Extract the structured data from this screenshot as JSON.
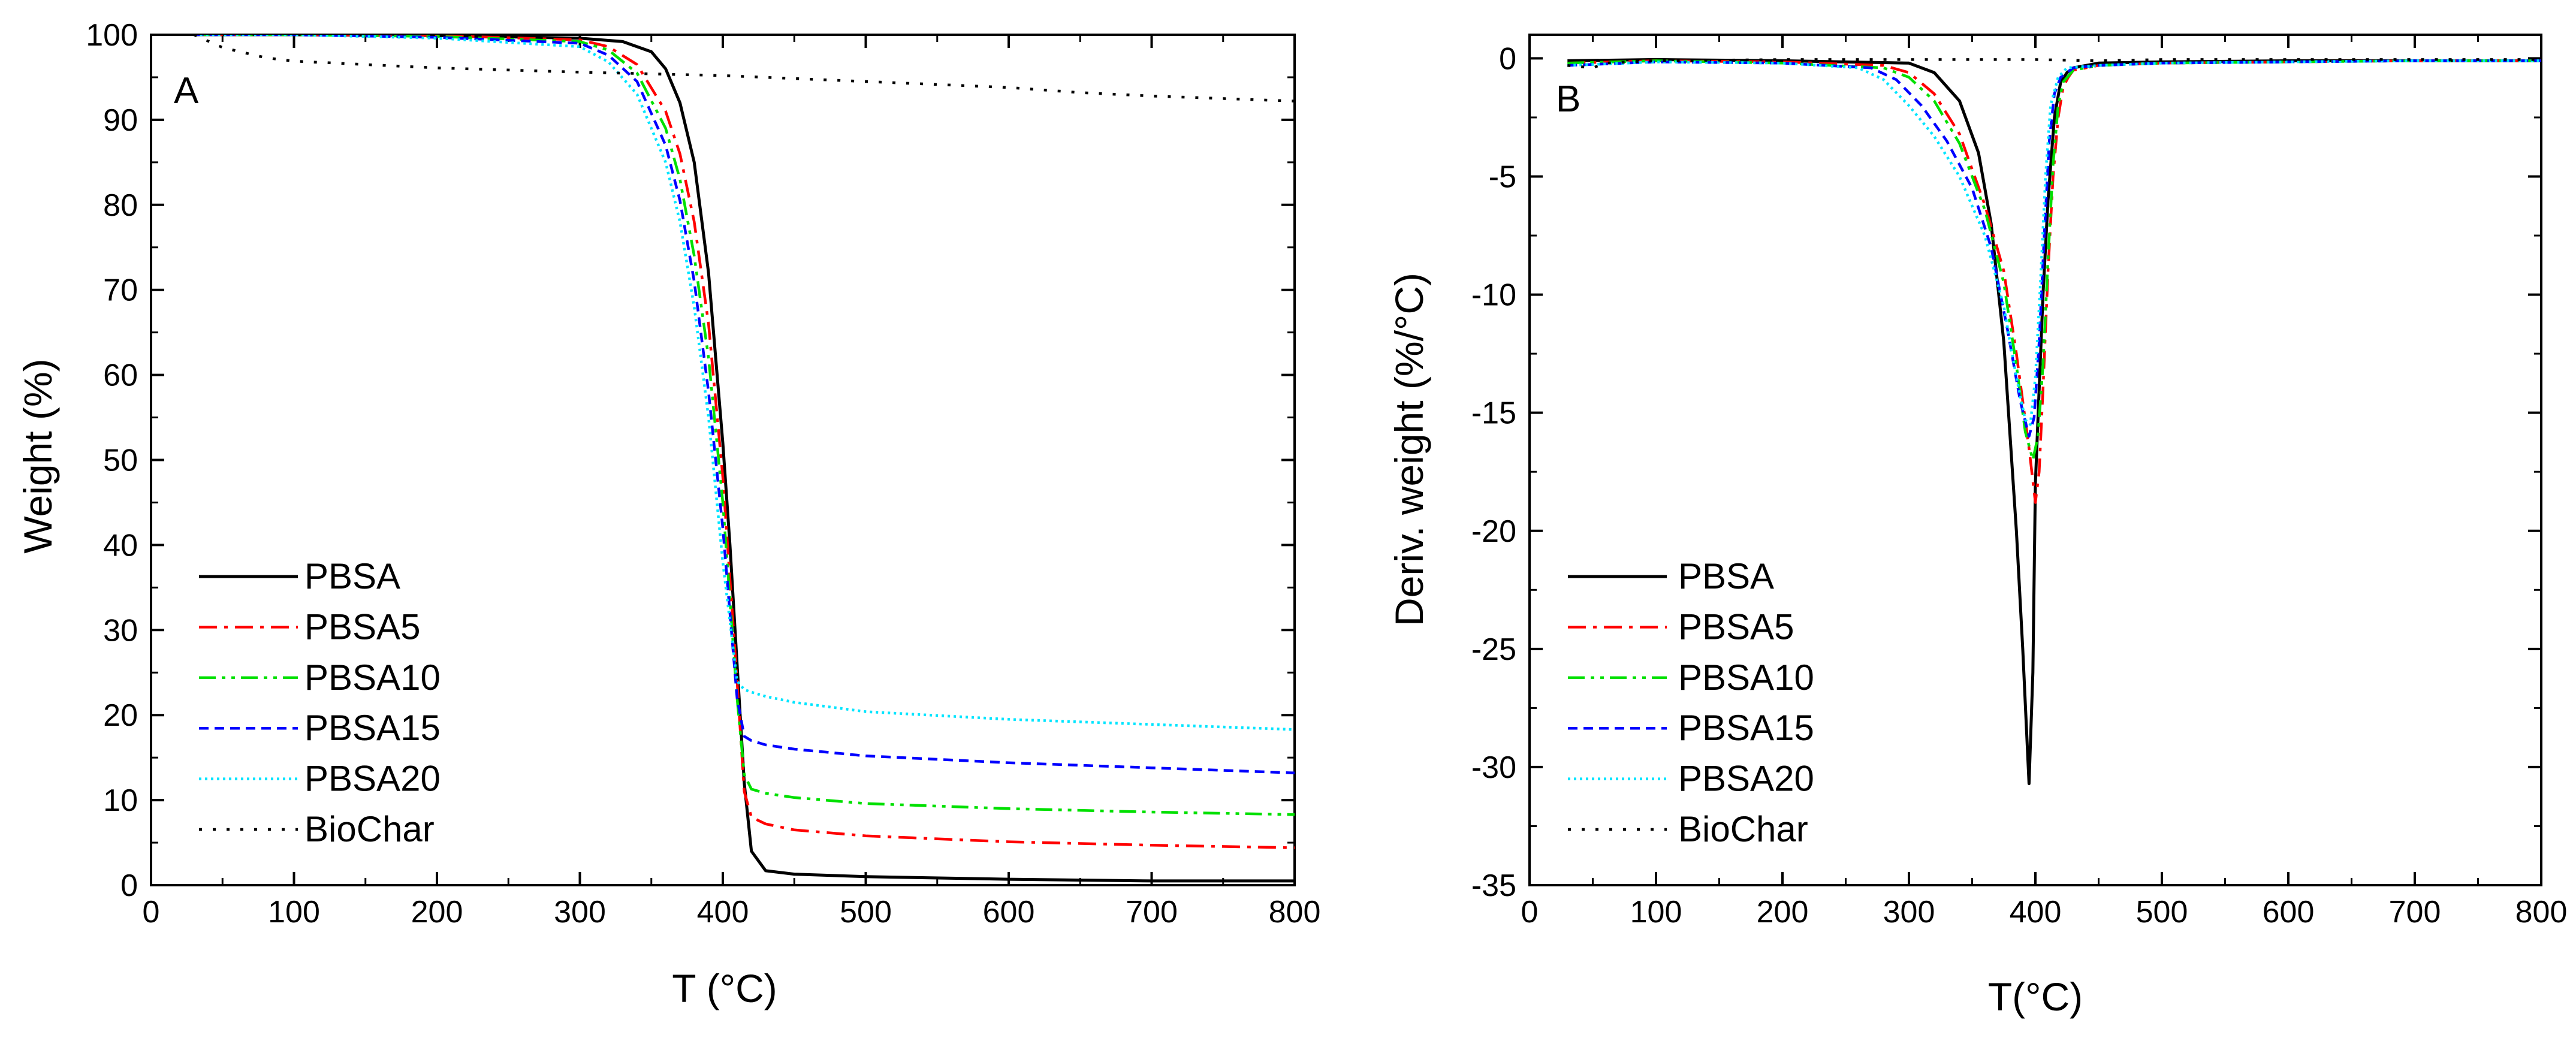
{
  "colors": {
    "PBSA": "#000000",
    "PBSA5": "#ff0000",
    "PBSA10": "#00e000",
    "PBSA15": "#0000ff",
    "PBSA20": "#00e5ff",
    "BioChar": "#000000"
  },
  "chart_data": [
    {
      "type": "line",
      "panel_label": "A",
      "xlabel": "T (°C)",
      "ylabel": "Weight (%)",
      "xlim": [
        0,
        800
      ],
      "ylim": [
        0,
        100
      ],
      "x_ticks": [
        0,
        100,
        200,
        300,
        400,
        500,
        600,
        700,
        800
      ],
      "x_tick_labels": [
        "0",
        "100",
        "200",
        "300",
        "400",
        "500",
        "600",
        "700",
        "800"
      ],
      "y_ticks": [
        0,
        10,
        20,
        30,
        40,
        50,
        60,
        70,
        80,
        90,
        100
      ],
      "y_tick_labels": [
        "0",
        "10",
        "20",
        "30",
        "40",
        "50",
        "60",
        "70",
        "80",
        "90",
        "100"
      ],
      "legend_position": "bottom-left",
      "series": [
        {
          "name": "PBSA",
          "style": "solid",
          "color": "#000000",
          "x": [
            30,
            100,
            200,
            300,
            330,
            350,
            360,
            370,
            380,
            390,
            400,
            405,
            410,
            415,
            420,
            430,
            450,
            500,
            600,
            700,
            800
          ],
          "y": [
            100,
            100,
            99.9,
            99.6,
            99.2,
            98,
            96,
            92,
            85,
            72,
            52,
            40,
            26,
            12,
            4,
            1.7,
            1.3,
            1.0,
            0.7,
            0.5,
            0.5
          ]
        },
        {
          "name": "PBSA5",
          "style": "dashdot",
          "color": "#ff0000",
          "x": [
            30,
            100,
            200,
            300,
            320,
            340,
            360,
            370,
            380,
            390,
            400,
            410,
            415,
            420,
            430,
            450,
            500,
            600,
            700,
            800
          ],
          "y": [
            100,
            100,
            99.9,
            99.4,
            98.6,
            96.5,
            91,
            86,
            78,
            66,
            48,
            24,
            11,
            8,
            7.2,
            6.5,
            5.8,
            5.1,
            4.7,
            4.4
          ]
        },
        {
          "name": "PBSA10",
          "style": "dashdotdot",
          "color": "#00e000",
          "x": [
            30,
            100,
            200,
            300,
            320,
            340,
            360,
            370,
            380,
            390,
            400,
            410,
            415,
            420,
            430,
            450,
            500,
            600,
            700,
            800
          ],
          "y": [
            100,
            100,
            99.8,
            99.2,
            98.2,
            95.5,
            89,
            83,
            74,
            62,
            45,
            22,
            13,
            11.3,
            10.8,
            10.3,
            9.6,
            9.0,
            8.6,
            8.3
          ]
        },
        {
          "name": "PBSA15",
          "style": "dash",
          "color": "#0000ff",
          "x": [
            30,
            100,
            200,
            300,
            320,
            340,
            360,
            370,
            380,
            390,
            400,
            410,
            415,
            420,
            430,
            450,
            500,
            600,
            700,
            800
          ],
          "y": [
            100,
            100,
            99.7,
            99.0,
            97.6,
            94.5,
            87,
            80.5,
            71,
            58,
            42,
            22,
            17.5,
            17,
            16.5,
            16,
            15.2,
            14.4,
            13.8,
            13.2
          ]
        },
        {
          "name": "PBSA20",
          "style": "dot",
          "color": "#00e5ff",
          "x": [
            30,
            100,
            200,
            300,
            320,
            340,
            360,
            370,
            380,
            390,
            400,
            410,
            415,
            420,
            430,
            450,
            500,
            600,
            700,
            800
          ],
          "y": [
            100,
            100,
            99.6,
            98.6,
            96.8,
            93,
            85,
            78,
            68,
            55,
            38,
            24,
            23,
            22.7,
            22.2,
            21.5,
            20.4,
            19.5,
            18.9,
            18.3
          ]
        },
        {
          "name": "BioChar",
          "style": "sparse-dot",
          "color": "#000000",
          "x": [
            30,
            50,
            80,
            100,
            150,
            200,
            300,
            400,
            500,
            600,
            650,
            700,
            800
          ],
          "y": [
            100,
            98.5,
            97.3,
            96.9,
            96.5,
            96.1,
            95.6,
            95.2,
            94.5,
            93.8,
            93.2,
            92.8,
            92.2
          ]
        }
      ]
    },
    {
      "type": "line",
      "panel_label": "B",
      "xlabel": "T(°C)",
      "ylabel": "Deriv. weight (%/°C)",
      "xlim": [
        0,
        800
      ],
      "ylim": [
        -35,
        1
      ],
      "x_ticks": [
        0,
        100,
        200,
        300,
        400,
        500,
        600,
        700,
        800
      ],
      "x_tick_labels": [
        "0",
        "100",
        "200",
        "300",
        "400",
        "500",
        "600",
        "700",
        "800"
      ],
      "y_ticks": [
        0,
        -5,
        -10,
        -15,
        -20,
        -25,
        -30,
        -35
      ],
      "y_tick_labels": [
        "0",
        "-5",
        "-10",
        "-15",
        "-20",
        "-25",
        "-30",
        "-35"
      ],
      "legend_position": "bottom-left",
      "series": [
        {
          "name": "PBSA",
          "style": "solid",
          "color": "#000000",
          "x": [
            30,
            100,
            200,
            300,
            320,
            340,
            355,
            365,
            375,
            385,
            390,
            395,
            398,
            400,
            403,
            406,
            410,
            415,
            420,
            425,
            430,
            450,
            500,
            600,
            700,
            800
          ],
          "y": [
            -0.1,
            -0.05,
            -0.1,
            -0.2,
            -0.6,
            -1.8,
            -4,
            -7,
            -12,
            -20,
            -25,
            -30.7,
            -26,
            -18,
            -14,
            -10,
            -6,
            -2.5,
            -1,
            -0.6,
            -0.4,
            -0.2,
            -0.15,
            -0.1,
            -0.1,
            -0.1
          ]
        },
        {
          "name": "PBSA5",
          "style": "dashdot",
          "color": "#ff0000",
          "x": [
            30,
            100,
            200,
            280,
            300,
            320,
            340,
            360,
            375,
            385,
            395,
            400,
            403,
            406,
            410,
            414,
            418,
            422,
            426,
            430,
            450,
            500,
            600,
            700,
            800
          ],
          "y": [
            -0.2,
            -0.1,
            -0.15,
            -0.3,
            -0.6,
            -1.5,
            -3.2,
            -6.2,
            -9,
            -12.5,
            -16.5,
            -18.8,
            -17.5,
            -14,
            -9,
            -5,
            -2.5,
            -1.2,
            -0.8,
            -0.5,
            -0.3,
            -0.2,
            -0.15,
            -0.1,
            -0.1
          ]
        },
        {
          "name": "PBSA10",
          "style": "dashdotdot",
          "color": "#00e000",
          "x": [
            30,
            100,
            200,
            280,
            300,
            320,
            340,
            360,
            375,
            385,
            392,
            398,
            402,
            406,
            410,
            414,
            418,
            422,
            430,
            450,
            500,
            600,
            700,
            800
          ],
          "y": [
            -0.2,
            -0.1,
            -0.2,
            -0.4,
            -0.8,
            -1.8,
            -3.6,
            -6.4,
            -9.5,
            -13,
            -15.8,
            -17,
            -16,
            -13,
            -8.5,
            -4.5,
            -2,
            -1,
            -0.5,
            -0.3,
            -0.2,
            -0.15,
            -0.1,
            -0.1
          ]
        },
        {
          "name": "PBSA15",
          "style": "dash",
          "color": "#0000ff",
          "x": [
            30,
            100,
            200,
            270,
            290,
            310,
            330,
            350,
            365,
            378,
            388,
            395,
            399,
            403,
            407,
            411,
            415,
            420,
            430,
            450,
            500,
            600,
            700,
            800
          ],
          "y": [
            -0.3,
            -0.15,
            -0.2,
            -0.4,
            -0.9,
            -2,
            -3.5,
            -5.5,
            -8,
            -11.5,
            -14.5,
            -16,
            -15.2,
            -12,
            -7.5,
            -3.5,
            -1.5,
            -0.8,
            -0.4,
            -0.3,
            -0.2,
            -0.15,
            -0.1,
            -0.1
          ]
        },
        {
          "name": "PBSA20",
          "style": "dot",
          "color": "#00e5ff",
          "x": [
            30,
            100,
            200,
            260,
            280,
            300,
            320,
            340,
            360,
            375,
            385,
            392,
            396,
            400,
            404,
            408,
            412,
            418,
            425,
            450,
            500,
            600,
            700,
            800
          ],
          "y": [
            -0.3,
            -0.15,
            -0.2,
            -0.4,
            -0.9,
            -2,
            -3.3,
            -5,
            -7.5,
            -10.5,
            -13.5,
            -15.3,
            -15.5,
            -13.5,
            -9.5,
            -5,
            -2,
            -0.8,
            -0.4,
            -0.3,
            -0.2,
            -0.15,
            -0.1,
            -0.1
          ]
        },
        {
          "name": "BioChar",
          "style": "sparse-dot",
          "color": "#000000",
          "x": [
            30,
            40,
            50,
            60,
            100,
            200,
            300,
            400,
            450,
            500,
            600,
            700,
            800
          ],
          "y": [
            -0.3,
            -0.35,
            -0.4,
            -0.2,
            -0.1,
            -0.05,
            -0.05,
            -0.05,
            -0.1,
            -0.05,
            -0.05,
            -0.05,
            -0.05
          ]
        }
      ]
    }
  ]
}
